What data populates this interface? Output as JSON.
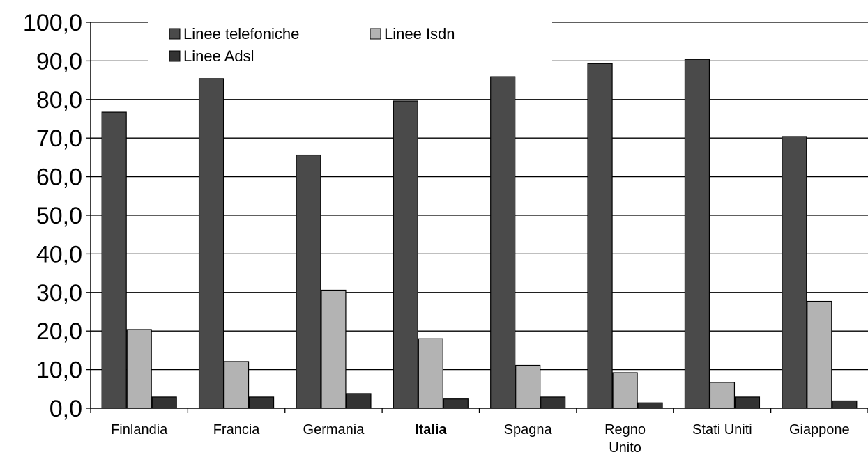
{
  "chart_data": {
    "type": "bar",
    "title": "",
    "xlabel": "",
    "ylabel": "",
    "ylim": [
      0,
      100
    ],
    "yticks": [
      "0,0",
      "10,0",
      "20,0",
      "30,0",
      "40,0",
      "50,0",
      "60,0",
      "70,0",
      "80,0",
      "90,0",
      "100,0"
    ],
    "grid": true,
    "legend_position": "top-left",
    "categories": [
      {
        "lines": [
          "Finlandia"
        ],
        "bold": false
      },
      {
        "lines": [
          "Francia"
        ],
        "bold": false
      },
      {
        "lines": [
          "Germania"
        ],
        "bold": false
      },
      {
        "lines": [
          "Italia"
        ],
        "bold": true
      },
      {
        "lines": [
          "Spagna"
        ],
        "bold": false
      },
      {
        "lines": [
          "Regno",
          "Unito"
        ],
        "bold": false
      },
      {
        "lines": [
          "Stati Uniti"
        ],
        "bold": false
      },
      {
        "lines": [
          "Giappone"
        ],
        "bold": false
      }
    ],
    "series": [
      {
        "name": "Linee telefoniche",
        "color": "#4a4a4a",
        "values": [
          76.7,
          85.4,
          65.6,
          79.6,
          85.9,
          89.3,
          90.4,
          70.4
        ]
      },
      {
        "name": "Linee Isdn",
        "color": "#b3b3b3",
        "values": [
          20.4,
          12.1,
          30.6,
          18.0,
          11.1,
          9.2,
          6.7,
          27.7
        ]
      },
      {
        "name": "Linee Adsl",
        "color": "#333333",
        "values": [
          2.9,
          2.9,
          3.8,
          2.4,
          2.9,
          1.4,
          2.9,
          1.9
        ]
      }
    ]
  }
}
